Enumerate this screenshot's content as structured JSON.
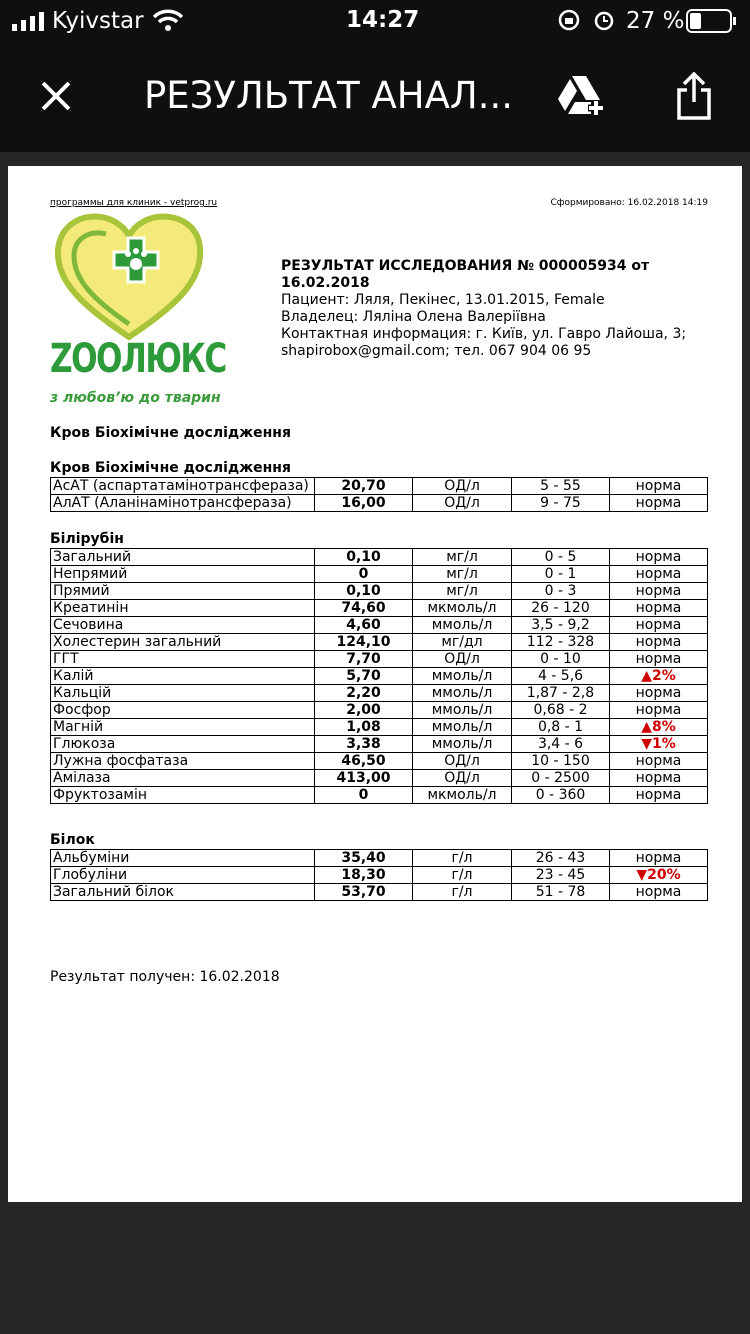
{
  "status_bar": {
    "carrier": "Kyivstar",
    "time": "14:27",
    "battery": "27 %"
  },
  "toolbar": {
    "title": "РЕЗУЛЬТАТ АНАЛ..."
  },
  "document": {
    "source": "программы для клиник - vetprog.ru",
    "generated": "Сформировано: 16.02.2018 14:19",
    "logo": {
      "name": "ZООЛЮКС",
      "slogan": "з любов’ю до тварин"
    },
    "heading": "РЕЗУЛЬТАТ ИССЛЕДОВАНИЯ № 000005934 от 16.02.2018",
    "patient": "Пациент: Ляля, Пекінес, 13.01.2015, Female",
    "owner": "Владелец: Ляліна Олена Валеріївна",
    "contact": "Контактная информация: г. Київ, ул. Гавро Лайоша, 3; shapirobox@gmail.com; тел. 067 904 06 95",
    "analysis_title": "Кров Біохімічне дослідження",
    "sections": [
      {
        "title": "Кров Біохімічне дослідження",
        "rows": [
          [
            "АсАТ (аспартатамінотрансфераза)",
            "20,70",
            "ОД/л",
            "5 - 55",
            "норма"
          ],
          [
            "АлАТ (Аланінамінотрансфераза)",
            "16,00",
            "ОД/л",
            "9 - 75",
            "норма"
          ]
        ]
      },
      {
        "title": "Білірубін",
        "rows": [
          [
            "Загальний",
            "0,10",
            "мг/л",
            "0 - 5",
            "норма"
          ],
          [
            "Непрямий",
            "0",
            "мг/л",
            "0 - 1",
            "норма"
          ],
          [
            "Прямий",
            "0,10",
            "мг/л",
            "0 - 3",
            "норма"
          ],
          [
            "Креатинін",
            "74,60",
            "мкмоль/л",
            "26 - 120",
            "норма"
          ],
          [
            "Сечовина",
            "4,60",
            "ммоль/л",
            "3,5 - 9,2",
            "норма"
          ],
          [
            "Холестерин загальний",
            "124,10",
            "мг/дл",
            "112 - 328",
            "норма"
          ],
          [
            "ГГТ",
            "7,70",
            "ОД/л",
            "0 - 10",
            "норма"
          ],
          [
            "Калій",
            "5,70",
            "ммоль/л",
            "4 - 5,6",
            "▲2%"
          ],
          [
            "Кальцій",
            "2,20",
            "ммоль/л",
            "1,87 - 2,8",
            "норма"
          ],
          [
            "Фосфор",
            "2,00",
            "ммоль/л",
            "0,68 - 2",
            "норма"
          ],
          [
            "Магній",
            "1,08",
            "ммоль/л",
            "0,8 - 1",
            "▲8%"
          ],
          [
            "Глюкоза",
            "3,38",
            "ммоль/л",
            "3,4 - 6",
            "▼1%"
          ],
          [
            "Лужна фосфатаза",
            "46,50",
            "ОД/л",
            "10 - 150",
            "норма"
          ],
          [
            "Амілаза",
            "413,00",
            "ОД/л",
            "0 - 2500",
            "норма"
          ],
          [
            "Фруктозамін",
            "0",
            "мкмоль/л",
            "0 - 360",
            "норма"
          ]
        ]
      },
      {
        "title": "Білок",
        "rows": [
          [
            "Альбуміни",
            "35,40",
            "г/л",
            "26 - 43",
            "норма"
          ],
          [
            "Глобуліни",
            "18,30",
            "г/л",
            "23 - 45",
            "▼20%"
          ],
          [
            "Загальний білок",
            "53,70",
            "г/л",
            "51 - 78",
            "норма"
          ]
        ]
      }
    ],
    "result": "Результат получен: 16.02.2018"
  }
}
